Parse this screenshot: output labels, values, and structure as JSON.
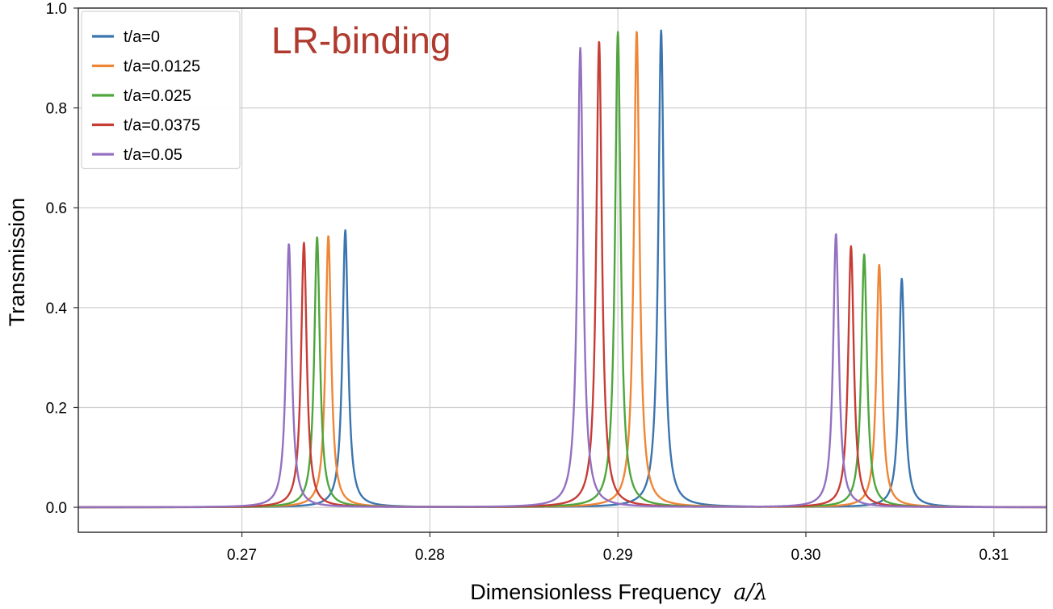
{
  "chart_data": {
    "type": "line",
    "title": "",
    "xlabel": "Dimensionless Frequency",
    "xlabel_math": "a/λ",
    "ylabel": "Transmission",
    "xlim": [
      0.2613,
      0.3128
    ],
    "ylim": [
      -0.05,
      1.0
    ],
    "xticks": [
      0.27,
      0.28,
      0.29,
      0.3,
      0.31
    ],
    "xtick_labels": [
      "0.27",
      "0.28",
      "0.29",
      "0.30",
      "0.31"
    ],
    "yticks": [
      0.0,
      0.2,
      0.4,
      0.6,
      0.8,
      1.0
    ],
    "ytick_labels": [
      "0.0",
      "0.2",
      "0.4",
      "0.6",
      "0.8",
      "1.0"
    ],
    "grid": true,
    "legend_position": "top-left",
    "annotation": {
      "text": "LR-binding",
      "color": "#b03a2e"
    },
    "linewidth_hint": "thin",
    "series": [
      {
        "name": "t/a=0",
        "color": "#3b75af",
        "peaks": [
          {
            "x": 0.2755,
            "y": 0.555
          },
          {
            "x": 0.2923,
            "y": 0.955
          },
          {
            "x": 0.3051,
            "y": 0.458
          }
        ]
      },
      {
        "name": "t/a=0.0125",
        "color": "#ef8636",
        "peaks": [
          {
            "x": 0.2746,
            "y": 0.544
          },
          {
            "x": 0.291,
            "y": 0.954
          },
          {
            "x": 0.3039,
            "y": 0.486
          }
        ]
      },
      {
        "name": "t/a=0.025",
        "color": "#4ea63c",
        "peaks": [
          {
            "x": 0.274,
            "y": 0.541
          },
          {
            "x": 0.29,
            "y": 0.952
          },
          {
            "x": 0.3031,
            "y": 0.507
          }
        ]
      },
      {
        "name": "t/a=0.0375",
        "color": "#c63d36",
        "peaks": [
          {
            "x": 0.2733,
            "y": 0.53
          },
          {
            "x": 0.289,
            "y": 0.934
          },
          {
            "x": 0.3024,
            "y": 0.523
          }
        ]
      },
      {
        "name": "t/a=0.05",
        "color": "#9370c0",
        "peaks": [
          {
            "x": 0.2725,
            "y": 0.528
          },
          {
            "x": 0.288,
            "y": 0.92
          },
          {
            "x": 0.3016,
            "y": 0.548
          }
        ]
      }
    ]
  }
}
